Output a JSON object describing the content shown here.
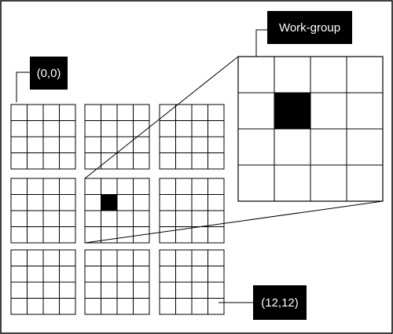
{
  "diagram": {
    "grid_blocks": {
      "rows": 3,
      "cols": 3,
      "cells_per_side": 4
    },
    "highlighted_block": {
      "row": 1,
      "col": 1
    },
    "highlighted_cell": {
      "row": 1,
      "col": 1
    },
    "zoom": {
      "cells_per_side": 4,
      "highlighted_cell": {
        "row": 1,
        "col": 1
      }
    }
  },
  "labels": {
    "origin": "(0,0)",
    "end": "(12,12)",
    "workgroup": "Work-group"
  },
  "colors": {
    "line": "#000000",
    "fill": "#000000",
    "label_bg": "#000000",
    "label_text": "#ffffff",
    "background": "#ffffff"
  }
}
